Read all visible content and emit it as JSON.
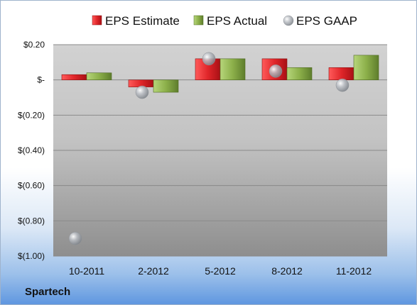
{
  "company": "Spartech",
  "colors": {
    "estimate": "#e0262a",
    "actual": "#8cb04a",
    "gaap": "#a9adb3"
  },
  "chart_data": {
    "type": "bar",
    "categories": [
      "10-2011",
      "2-2012",
      "5-2012",
      "8-2012",
      "11-2012"
    ],
    "series": [
      {
        "name": "EPS Estimate",
        "kind": "bar",
        "values": [
          0.03,
          -0.04,
          0.12,
          0.12,
          0.07
        ]
      },
      {
        "name": "EPS Actual",
        "kind": "bar",
        "values": [
          0.04,
          -0.07,
          0.12,
          0.07,
          0.14
        ]
      },
      {
        "name": "EPS GAAP",
        "kind": "scatter",
        "values": [
          -0.9,
          -0.07,
          0.12,
          0.05,
          -0.03
        ]
      }
    ],
    "ylim": [
      -1.0,
      0.2
    ],
    "yticks": [
      0.2,
      0.0,
      -0.2,
      -0.4,
      -0.6,
      -0.8,
      -1.0
    ],
    "ytick_labels": [
      "$0.20",
      "$-",
      "$(0.20)",
      "$(0.40)",
      "$(0.60)",
      "$(0.80)",
      "$(1.00)"
    ],
    "grid": true,
    "legend": "top"
  }
}
